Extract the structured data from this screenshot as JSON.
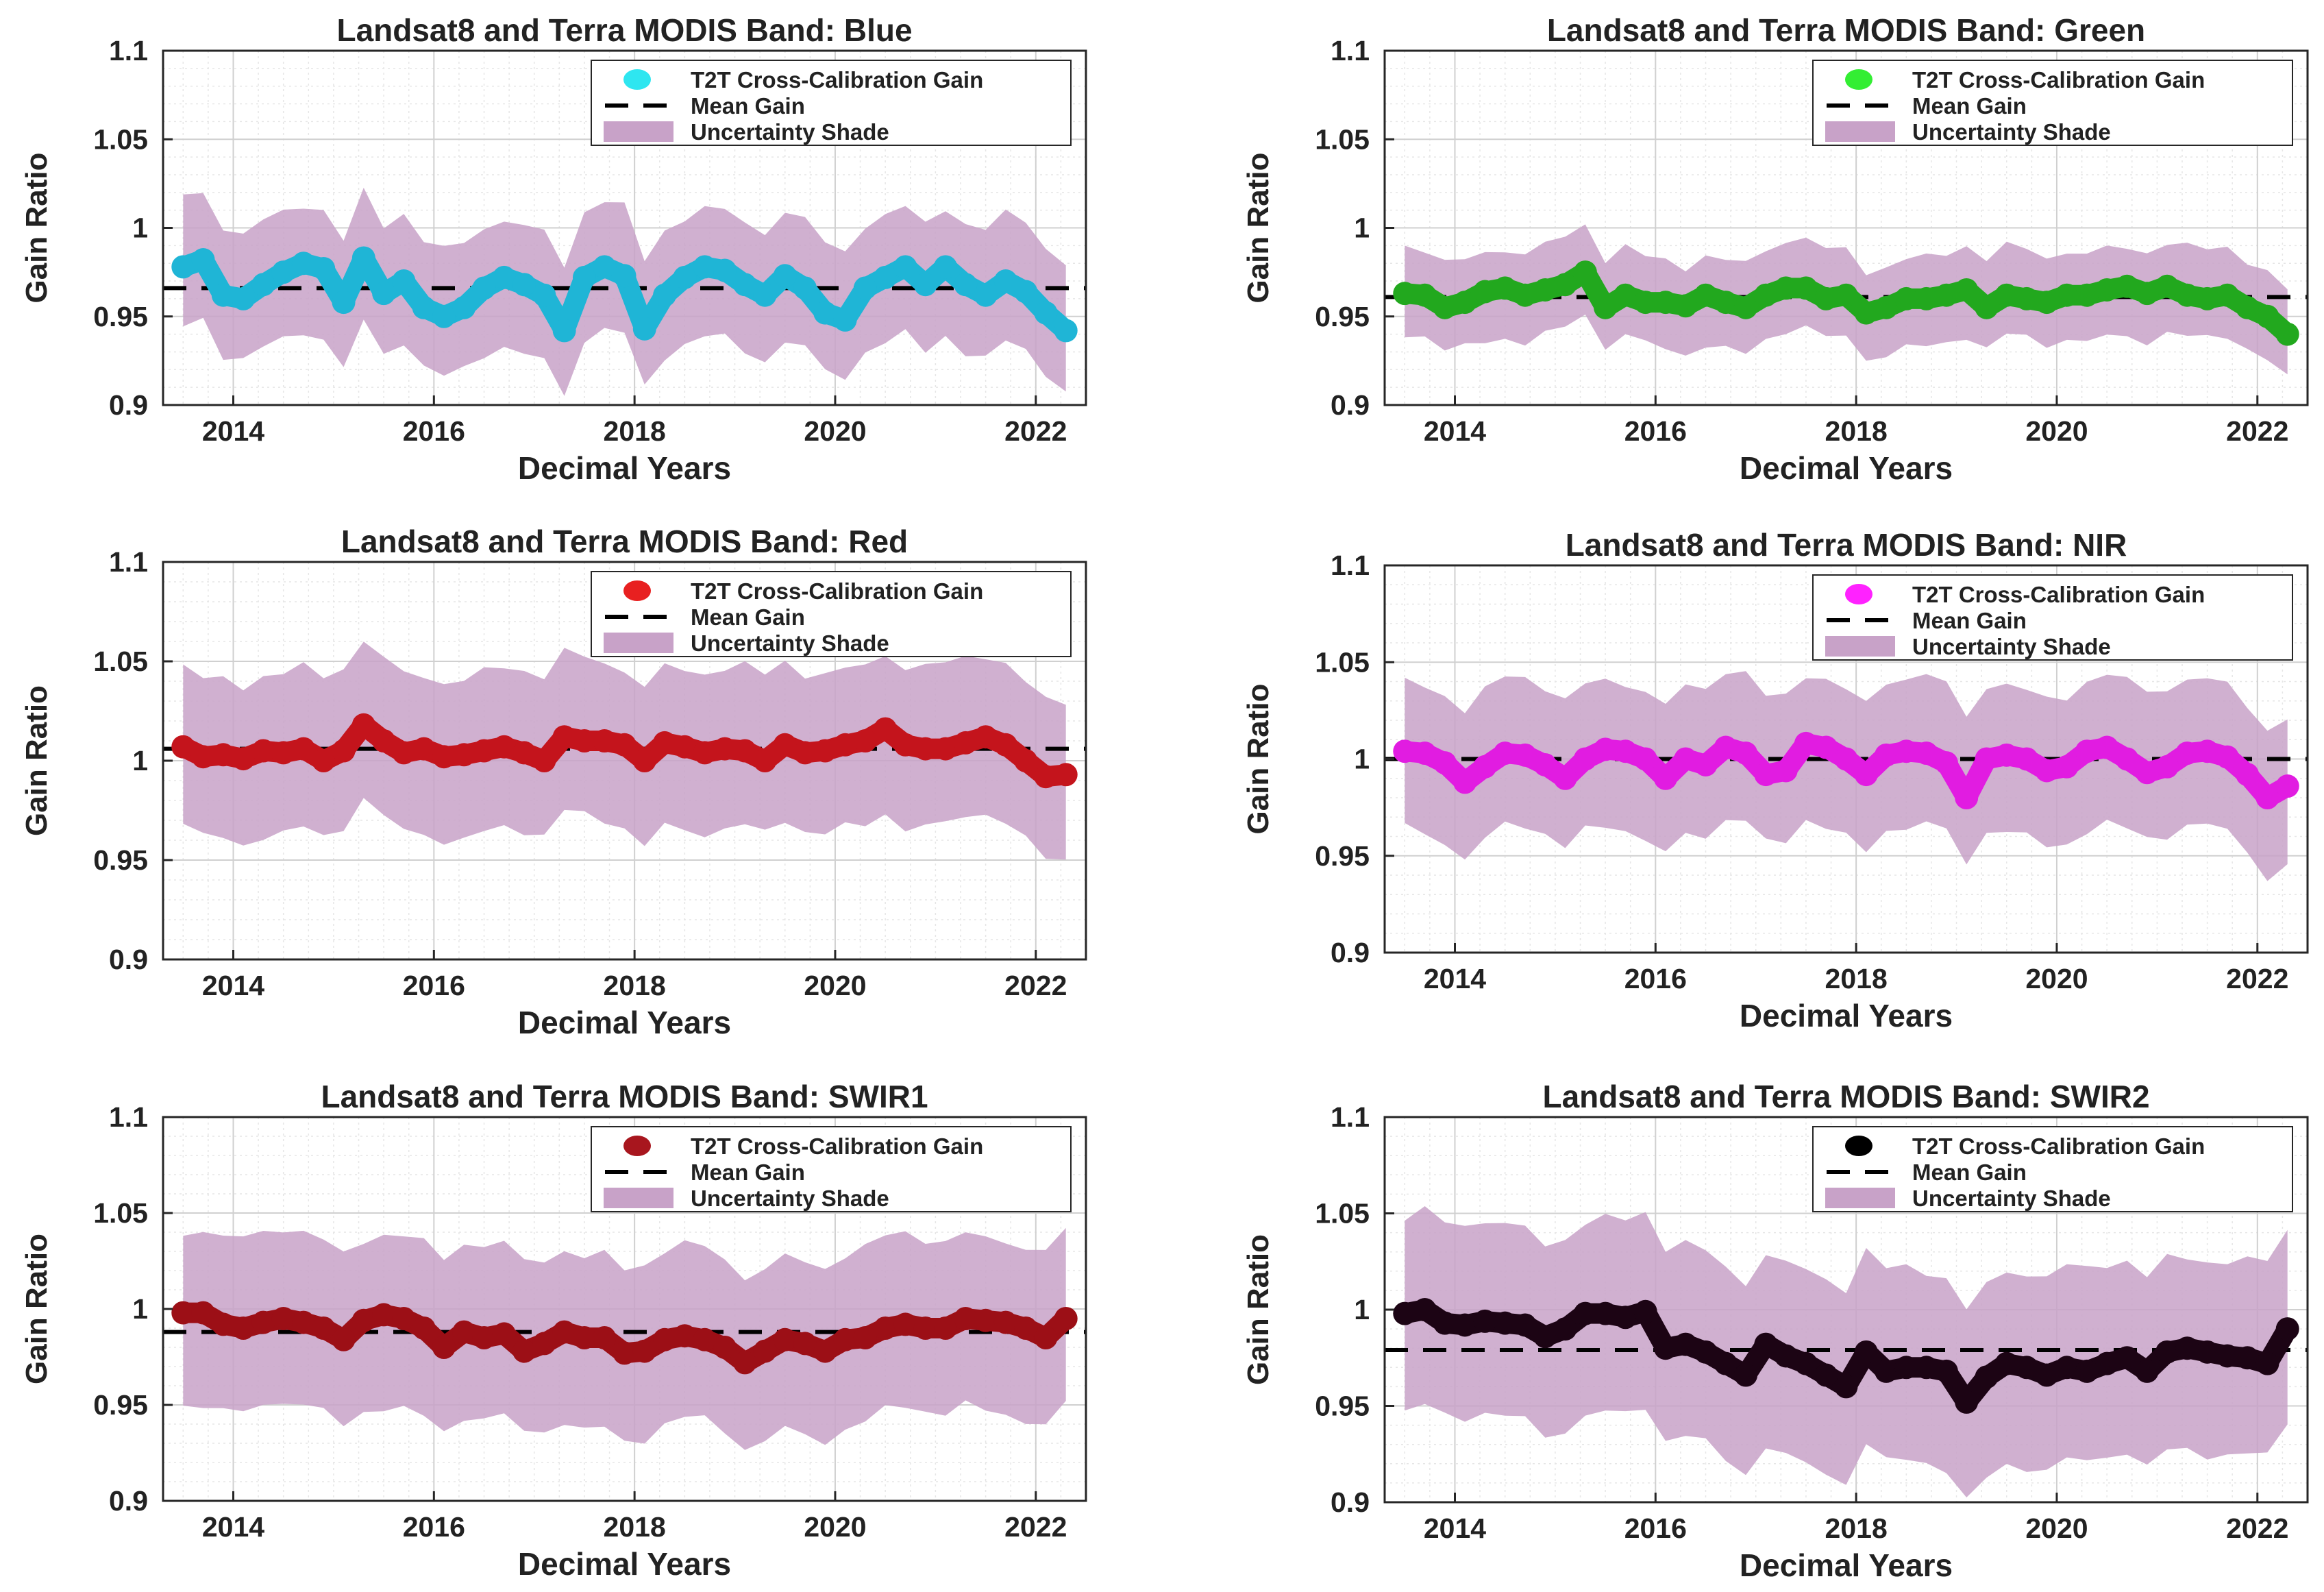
{
  "page": {
    "background": "#ffffff"
  },
  "panel_style": {
    "shade_color": "#c8a2c8",
    "mean_line_color": "#000000",
    "grid": true
  },
  "chart_data": [
    {
      "type": "line",
      "title": "Landsat8 and Terra MODIS Band: Blue",
      "xlabel": "Decimal Years",
      "ylabel": "Gain Ratio",
      "xlim": [
        2013.3,
        2022.5
      ],
      "ylim": [
        0.9,
        1.1
      ],
      "xticks": [
        "2014",
        "2016",
        "2018",
        "2020",
        "2022"
      ],
      "yticks": [
        "0.9",
        "0.95",
        "1",
        "1.05",
        "1.1"
      ],
      "legend_position": "top-right",
      "legend": [
        "T2T Cross-Calibration Gain",
        "Mean Gain",
        "Uncertainty Shade"
      ],
      "marker_color": "#1fb5d6",
      "legend_marker_color": "#2ee6f0",
      "mean_gain": 0.966,
      "uncertainty": 0.036,
      "x": [
        2013.5,
        2013.7,
        2013.9,
        2014.1,
        2014.3,
        2014.5,
        2014.7,
        2014.9,
        2015.1,
        2015.3,
        2015.5,
        2015.7,
        2015.9,
        2016.1,
        2016.3,
        2016.5,
        2016.7,
        2016.9,
        2017.1,
        2017.3,
        2017.5,
        2017.7,
        2017.9,
        2018.1,
        2018.3,
        2018.5,
        2018.7,
        2018.9,
        2019.1,
        2019.3,
        2019.5,
        2019.7,
        2019.9,
        2020.1,
        2020.3,
        2020.5,
        2020.7,
        2020.9,
        2021.1,
        2021.3,
        2021.5,
        2021.7,
        2021.9,
        2022.1,
        2022.3
      ],
      "values": [
        0.978,
        0.982,
        0.962,
        0.96,
        0.968,
        0.975,
        0.98,
        0.977,
        0.958,
        0.983,
        0.963,
        0.97,
        0.955,
        0.95,
        0.955,
        0.966,
        0.972,
        0.968,
        0.962,
        0.942,
        0.972,
        0.978,
        0.973,
        0.943,
        0.962,
        0.972,
        0.978,
        0.976,
        0.968,
        0.962,
        0.973,
        0.966,
        0.952,
        0.948,
        0.966,
        0.972,
        0.978,
        0.968,
        0.978,
        0.968,
        0.962,
        0.97,
        0.964,
        0.952,
        0.942
      ]
    },
    {
      "type": "line",
      "title": "Landsat8 and Terra MODIS Band: Green",
      "xlabel": "Decimal Years",
      "ylabel": "Gain Ratio",
      "xlim": [
        2013.3,
        2022.5
      ],
      "ylim": [
        0.9,
        1.1
      ],
      "xticks": [
        "2014",
        "2016",
        "2018",
        "2020",
        "2022"
      ],
      "yticks": [
        "0.9",
        "0.95",
        "1",
        "1.05",
        "1.1"
      ],
      "legend_position": "top-right",
      "legend": [
        "T2T Cross-Calibration Gain",
        "Mean Gain",
        "Uncertainty Shade"
      ],
      "marker_color": "#22a81e",
      "legend_marker_color": "#33ee33",
      "mean_gain": 0.961,
      "uncertainty": 0.025,
      "x": [
        2013.5,
        2013.7,
        2013.9,
        2014.1,
        2014.3,
        2014.5,
        2014.7,
        2014.9,
        2015.1,
        2015.3,
        2015.5,
        2015.7,
        2015.9,
        2016.1,
        2016.3,
        2016.5,
        2016.7,
        2016.9,
        2017.1,
        2017.3,
        2017.5,
        2017.7,
        2017.9,
        2018.1,
        2018.3,
        2018.5,
        2018.7,
        2018.9,
        2019.1,
        2019.3,
        2019.5,
        2019.7,
        2019.9,
        2020.1,
        2020.3,
        2020.5,
        2020.7,
        2020.9,
        2021.1,
        2021.3,
        2021.5,
        2021.7,
        2021.9,
        2022.1,
        2022.3
      ],
      "values": [
        0.963,
        0.962,
        0.955,
        0.958,
        0.964,
        0.966,
        0.962,
        0.965,
        0.968,
        0.975,
        0.955,
        0.962,
        0.958,
        0.958,
        0.956,
        0.962,
        0.958,
        0.955,
        0.962,
        0.966,
        0.966,
        0.96,
        0.962,
        0.952,
        0.955,
        0.96,
        0.96,
        0.962,
        0.965,
        0.955,
        0.962,
        0.96,
        0.958,
        0.962,
        0.962,
        0.965,
        0.967,
        0.963,
        0.967,
        0.962,
        0.96,
        0.962,
        0.955,
        0.95,
        0.94
      ]
    },
    {
      "type": "line",
      "title": "Landsat8 and Terra MODIS Band: Red",
      "xlabel": "Decimal Years",
      "ylabel": "Gain Ratio",
      "xlim": [
        2013.3,
        2022.5
      ],
      "ylim": [
        0.9,
        1.1
      ],
      "xticks": [
        "2014",
        "2016",
        "2018",
        "2020",
        "2022"
      ],
      "yticks": [
        "0.9",
        "0.95",
        "1",
        "1.05",
        "1.1"
      ],
      "legend_position": "top-right",
      "legend": [
        "T2T Cross-Calibration Gain",
        "Mean Gain",
        "Uncertainty Shade"
      ],
      "marker_color": "#c4141c",
      "legend_marker_color": "#e82020",
      "mean_gain": 1.006,
      "uncertainty": 0.04,
      "x": [
        2013.5,
        2013.7,
        2013.9,
        2014.1,
        2014.3,
        2014.5,
        2014.7,
        2014.9,
        2015.1,
        2015.3,
        2015.5,
        2015.7,
        2015.9,
        2016.1,
        2016.3,
        2016.5,
        2016.7,
        2016.9,
        2017.1,
        2017.3,
        2017.5,
        2017.7,
        2017.9,
        2018.1,
        2018.3,
        2018.5,
        2018.7,
        2018.9,
        2019.1,
        2019.3,
        2019.5,
        2019.7,
        2019.9,
        2020.1,
        2020.3,
        2020.5,
        2020.7,
        2020.9,
        2021.1,
        2021.3,
        2021.5,
        2021.7,
        2021.9,
        2022.1,
        2022.3
      ],
      "values": [
        1.007,
        1.002,
        1.003,
        1.001,
        1.005,
        1.004,
        1.006,
        1.0,
        1.005,
        1.018,
        1.01,
        1.004,
        1.006,
        1.002,
        1.003,
        1.005,
        1.007,
        1.004,
        1.0,
        1.012,
        1.01,
        1.01,
        1.008,
        1.0,
        1.009,
        1.007,
        1.004,
        1.006,
        1.005,
        1.0,
        1.008,
        1.004,
        1.005,
        1.008,
        1.01,
        1.016,
        1.008,
        1.006,
        1.006,
        1.009,
        1.012,
        1.008,
        1.0,
        0.992,
        0.993
      ]
    },
    {
      "type": "line",
      "title": "Landsat8 and Terra MODIS Band: NIR",
      "xlabel": "Decimal Years",
      "ylabel": "Gain Ratio",
      "xlim": [
        2013.3,
        2022.5
      ],
      "ylim": [
        0.9,
        1.1
      ],
      "xticks": [
        "2014",
        "2016",
        "2018",
        "2020",
        "2022"
      ],
      "yticks": [
        "0.9",
        "0.95",
        "1",
        "1.05",
        "1.1"
      ],
      "legend_position": "top-right",
      "legend": [
        "T2T Cross-Calibration Gain",
        "Mean Gain",
        "Uncertainty Shade"
      ],
      "marker_color": "#e11ce1",
      "legend_marker_color": "#ff22ff",
      "mean_gain": 1.0,
      "uncertainty": 0.038,
      "x": [
        2013.5,
        2013.7,
        2013.9,
        2014.1,
        2014.3,
        2014.5,
        2014.7,
        2014.9,
        2015.1,
        2015.3,
        2015.5,
        2015.7,
        2015.9,
        2016.1,
        2016.3,
        2016.5,
        2016.7,
        2016.9,
        2017.1,
        2017.3,
        2017.5,
        2017.7,
        2017.9,
        2018.1,
        2018.3,
        2018.5,
        2018.7,
        2018.9,
        2019.1,
        2019.3,
        2019.5,
        2019.7,
        2019.9,
        2020.1,
        2020.3,
        2020.5,
        2020.7,
        2020.9,
        2021.1,
        2021.3,
        2021.5,
        2021.7,
        2021.9,
        2022.1,
        2022.3
      ],
      "values": [
        1.004,
        1.003,
        0.998,
        0.988,
        0.996,
        1.003,
        1.002,
        0.997,
        0.99,
        1.0,
        1.005,
        1.004,
        1.0,
        0.99,
        1.0,
        0.997,
        1.006,
        1.003,
        0.992,
        0.994,
        1.008,
        1.006,
        1.0,
        0.992,
        1.002,
        1.004,
        1.003,
        0.998,
        0.98,
        1.0,
        1.002,
        1.0,
        0.994,
        0.996,
        1.004,
        1.006,
        1.0,
        0.993,
        0.996,
        1.003,
        1.004,
        1.001,
        0.992,
        0.98,
        0.986
      ]
    },
    {
      "type": "line",
      "title": "Landsat8 and Terra MODIS Band: SWIR1",
      "xlabel": "Decimal Years",
      "ylabel": "Gain Ratio",
      "xlim": [
        2013.3,
        2022.5
      ],
      "ylim": [
        0.9,
        1.1
      ],
      "xticks": [
        "2014",
        "2016",
        "2018",
        "2020",
        "2022"
      ],
      "yticks": [
        "0.9",
        "0.95",
        "1",
        "1.05",
        "1.1"
      ],
      "legend_position": "top-right",
      "legend": [
        "T2T Cross-Calibration Gain",
        "Mean Gain",
        "Uncertainty Shade"
      ],
      "marker_color": "#9c0f16",
      "legend_marker_color": "#a8161e",
      "mean_gain": 0.988,
      "uncertainty": 0.045,
      "x": [
        2013.5,
        2013.7,
        2013.9,
        2014.1,
        2014.3,
        2014.5,
        2014.7,
        2014.9,
        2015.1,
        2015.3,
        2015.5,
        2015.7,
        2015.9,
        2016.1,
        2016.3,
        2016.5,
        2016.7,
        2016.9,
        2017.1,
        2017.3,
        2017.5,
        2017.7,
        2017.9,
        2018.1,
        2018.3,
        2018.5,
        2018.7,
        2018.9,
        2019.1,
        2019.3,
        2019.5,
        2019.7,
        2019.9,
        2020.1,
        2020.3,
        2020.5,
        2020.7,
        2020.9,
        2021.1,
        2021.3,
        2021.5,
        2021.7,
        2021.9,
        2022.1,
        2022.3
      ],
      "values": [
        0.998,
        0.998,
        0.992,
        0.99,
        0.993,
        0.995,
        0.993,
        0.99,
        0.984,
        0.994,
        0.997,
        0.995,
        0.99,
        0.98,
        0.988,
        0.985,
        0.987,
        0.978,
        0.982,
        0.988,
        0.985,
        0.985,
        0.977,
        0.978,
        0.984,
        0.986,
        0.984,
        0.98,
        0.972,
        0.978,
        0.984,
        0.982,
        0.978,
        0.984,
        0.985,
        0.99,
        0.992,
        0.99,
        0.99,
        0.995,
        0.994,
        0.993,
        0.99,
        0.985,
        0.995
      ]
    },
    {
      "type": "line",
      "title": "Landsat8 and Terra MODIS Band: SWIR2",
      "xlabel": "Decimal Years",
      "ylabel": "Gain Ratio",
      "xlim": [
        2013.3,
        2022.5
      ],
      "ylim": [
        0.9,
        1.1
      ],
      "xticks": [
        "2014",
        "2016",
        "2018",
        "2020",
        "2022"
      ],
      "yticks": [
        "0.9",
        "0.95",
        "1",
        "1.05",
        "1.1"
      ],
      "legend_position": "top-right",
      "legend": [
        "T2T Cross-Calibration Gain",
        "Mean Gain",
        "Uncertainty Shade"
      ],
      "marker_color": "#1c0414",
      "legend_marker_color": "#000000",
      "mean_gain": 0.979,
      "uncertainty": 0.05,
      "x": [
        2013.5,
        2013.7,
        2013.9,
        2014.1,
        2014.3,
        2014.5,
        2014.7,
        2014.9,
        2015.1,
        2015.3,
        2015.5,
        2015.7,
        2015.9,
        2016.1,
        2016.3,
        2016.5,
        2016.7,
        2016.9,
        2017.1,
        2017.3,
        2017.5,
        2017.7,
        2017.9,
        2018.1,
        2018.3,
        2018.5,
        2018.7,
        2018.9,
        2019.1,
        2019.3,
        2019.5,
        2019.7,
        2019.9,
        2020.1,
        2020.3,
        2020.5,
        2020.7,
        2020.9,
        2021.1,
        2021.3,
        2021.5,
        2021.7,
        2021.9,
        2022.1,
        2022.3
      ],
      "values": [
        0.998,
        1.0,
        0.993,
        0.992,
        0.994,
        0.993,
        0.992,
        0.986,
        0.99,
        0.998,
        0.998,
        0.996,
        0.999,
        0.98,
        0.982,
        0.978,
        0.972,
        0.966,
        0.982,
        0.976,
        0.972,
        0.966,
        0.96,
        0.978,
        0.968,
        0.97,
        0.97,
        0.968,
        0.952,
        0.965,
        0.972,
        0.97,
        0.966,
        0.97,
        0.968,
        0.972,
        0.975,
        0.968,
        0.978,
        0.98,
        0.978,
        0.976,
        0.975,
        0.972,
        0.99
      ]
    }
  ]
}
